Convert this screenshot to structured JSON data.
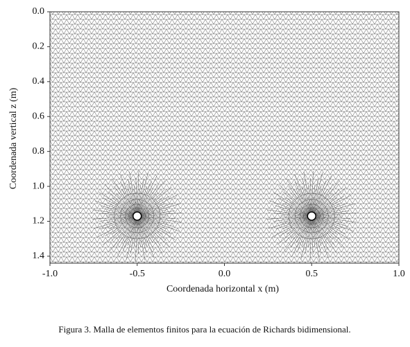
{
  "chart_data": {
    "type": "mesh",
    "xlabel": "Coordenada horizontal x (m)",
    "ylabel": "Coordenada vertical z (m)",
    "caption": "Figura 3. Malla de elementos finitos para la ecuación de Richards bidimensional.",
    "xlim": [
      -1.0,
      1.0
    ],
    "ylim": [
      0.0,
      1.44
    ],
    "y_inverted": true,
    "xticks": [
      {
        "value": -1.0,
        "label": "-1.0"
      },
      {
        "value": -0.5,
        "label": "-0.5"
      },
      {
        "value": 0.0,
        "label": "0.0"
      },
      {
        "value": 0.5,
        "label": "0.5"
      },
      {
        "value": 1.0,
        "label": "1.0"
      }
    ],
    "yticks": [
      {
        "value": 0.0,
        "label": "0.0"
      },
      {
        "value": 0.2,
        "label": "0.2"
      },
      {
        "value": 0.4,
        "label": "0.4"
      },
      {
        "value": 0.6,
        "label": "0.6"
      },
      {
        "value": 0.8,
        "label": "0.8"
      },
      {
        "value": 1.0,
        "label": "1.0"
      },
      {
        "value": 1.2,
        "label": "1.2"
      },
      {
        "value": 1.4,
        "label": "1.4"
      }
    ],
    "holes": {
      "x": [
        -0.5,
        0.5
      ],
      "values": [
        1.17,
        1.17
      ]
    },
    "color": "#555555"
  }
}
